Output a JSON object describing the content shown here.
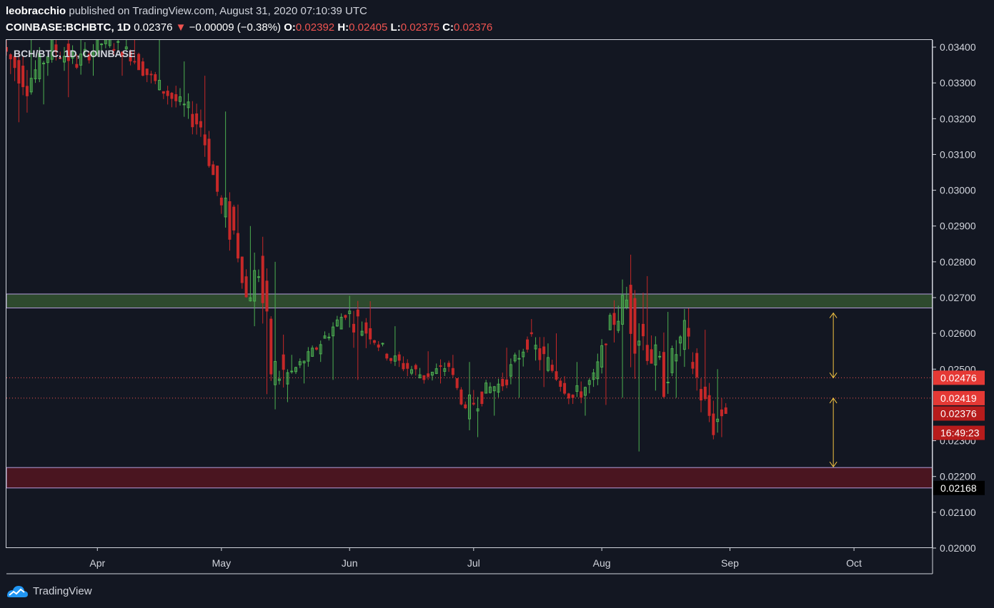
{
  "header": {
    "author": "leobracchio",
    "published_text": "published on TradingView.com, August 31, 2020 07:10:39 UTC",
    "symbol": "COINBASE:BCHBTC, 1D",
    "last": "0.02376",
    "change_arrow": "▼",
    "change": "−0.00009 (−0.38%)",
    "o_label": "O:",
    "o": "0.02392",
    "h_label": "H:",
    "h": "0.02405",
    "l_label": "L:",
    "l": "0.02375",
    "c_label": "C:",
    "c": "0.02376"
  },
  "pane_title": "BCH/BTC, 1D, COINBASE",
  "brand": {
    "name": "TradingView",
    "icon": "tradingview-logo-icon"
  },
  "colors": {
    "background": "#131722",
    "up": "#26a69a",
    "up_candle": "#4caf50",
    "down": "#ef5350",
    "down_candle": "#c62828",
    "resistance_zone": "#2e4a2e",
    "support_zone": "#4a1520",
    "arrow": "#f5c542",
    "price_badge": "#e53935",
    "last_badge": "#b71c1c"
  },
  "chart_data": {
    "type": "candlestick",
    "title": "BCH/BTC, 1D, COINBASE",
    "x_ticks": [
      "Apr",
      "May",
      "Jun",
      "Jul",
      "Aug",
      "Sep",
      "Oct"
    ],
    "x_range": [
      "2020-03-10",
      "2020-10-20"
    ],
    "y_ticks": [
      "0.03400",
      "0.03300",
      "0.03200",
      "0.03100",
      "0.03000",
      "0.02900",
      "0.02800",
      "0.02700",
      "0.02600",
      "0.02500",
      "0.02300",
      "0.02200",
      "0.02100",
      "0.02000"
    ],
    "ylim": [
      0.02,
      0.0342
    ],
    "zones": [
      {
        "name": "resistance",
        "from": 0.02671,
        "to": 0.0271
      },
      {
        "name": "support",
        "from": 0.02168,
        "to": 0.02225
      }
    ],
    "dotted_levels": [
      0.02476,
      0.02419
    ],
    "price_labels": [
      {
        "text": "0.02476",
        "value": 0.02476,
        "style": "red"
      },
      {
        "text": "0.02419",
        "value": 0.02419,
        "style": "red"
      },
      {
        "text": "0.02376",
        "value": 0.02376,
        "style": "last"
      },
      {
        "text": "16:49:23",
        "value": 0.02322,
        "style": "timer"
      },
      {
        "text": "0.02168",
        "value": 0.02168,
        "style": "black"
      }
    ],
    "arrows": [
      {
        "date": "2020-09-26",
        "from": 0.02476,
        "to": 0.02657
      },
      {
        "date": "2020-09-26",
        "from": 0.02419,
        "to": 0.02227
      }
    ],
    "ohlc_anchors": [
      [
        "2020-03-10",
        0.0324,
        0.0342,
        0.0319,
        0.034
      ],
      [
        "2020-03-16",
        0.0338,
        0.0343,
        0.0324,
        0.033
      ],
      [
        "2020-03-22",
        0.033,
        0.0344,
        0.0326,
        0.034
      ],
      [
        "2020-03-28",
        0.034,
        0.0345,
        0.0332,
        0.0336
      ],
      [
        "2020-04-04",
        0.0336,
        0.0344,
        0.0332,
        0.0342
      ],
      [
        "2020-04-10",
        0.0342,
        0.0346,
        0.0333,
        0.0338
      ],
      [
        "2020-04-16",
        0.0338,
        0.0342,
        0.0329,
        0.033
      ],
      [
        "2020-04-22",
        0.033,
        0.0336,
        0.0318,
        0.0324
      ],
      [
        "2020-04-27",
        0.0324,
        0.0332,
        0.0316,
        0.0318
      ],
      [
        "2020-05-02",
        0.0318,
        0.0322,
        0.0286,
        0.0295
      ],
      [
        "2020-05-05",
        0.0295,
        0.0296,
        0.0285,
        0.0288
      ],
      [
        "2020-05-08",
        0.0288,
        0.029,
        0.0262,
        0.027
      ],
      [
        "2020-05-11",
        0.027,
        0.0287,
        0.0243,
        0.0278
      ],
      [
        "2020-05-14",
        0.0278,
        0.028,
        0.0246,
        0.025
      ],
      [
        "2020-05-18",
        0.025,
        0.0254,
        0.0246,
        0.0248
      ],
      [
        "2020-05-25",
        0.0248,
        0.0258,
        0.0247,
        0.0256
      ],
      [
        "2020-06-01",
        0.0256,
        0.0268,
        0.0247,
        0.0266
      ],
      [
        "2020-06-06",
        0.0266,
        0.0269,
        0.0259,
        0.0261
      ],
      [
        "2020-06-12",
        0.0261,
        0.0262,
        0.025,
        0.0253
      ],
      [
        "2020-06-20",
        0.0253,
        0.0255,
        0.0246,
        0.0248
      ],
      [
        "2020-06-26",
        0.0248,
        0.0254,
        0.0247,
        0.0251
      ],
      [
        "2020-06-30",
        0.0251,
        0.0252,
        0.0231,
        0.0238
      ],
      [
        "2020-07-04",
        0.0238,
        0.0247,
        0.0237,
        0.0244
      ],
      [
        "2020-07-09",
        0.0244,
        0.0256,
        0.0242,
        0.0246
      ],
      [
        "2020-07-15",
        0.0246,
        0.0264,
        0.0245,
        0.0258
      ],
      [
        "2020-07-21",
        0.0258,
        0.026,
        0.0246,
        0.025
      ],
      [
        "2020-07-26",
        0.025,
        0.0252,
        0.0237,
        0.0242
      ],
      [
        "2020-07-31",
        0.0242,
        0.0252,
        0.024,
        0.0247
      ],
      [
        "2020-08-04",
        0.0247,
        0.0268,
        0.0242,
        0.0263
      ],
      [
        "2020-08-08",
        0.0263,
        0.0282,
        0.0227,
        0.0269
      ],
      [
        "2020-08-12",
        0.0269,
        0.0276,
        0.0244,
        0.0259
      ],
      [
        "2020-08-17",
        0.0259,
        0.0266,
        0.0242,
        0.0247
      ],
      [
        "2020-08-22",
        0.0247,
        0.0267,
        0.0244,
        0.026
      ],
      [
        "2020-08-26",
        0.026,
        0.0261,
        0.024,
        0.0243
      ],
      [
        "2020-08-29",
        0.0243,
        0.025,
        0.0231,
        0.0234
      ],
      [
        "2020-08-31",
        0.02392,
        0.02405,
        0.02375,
        0.02376
      ]
    ]
  }
}
